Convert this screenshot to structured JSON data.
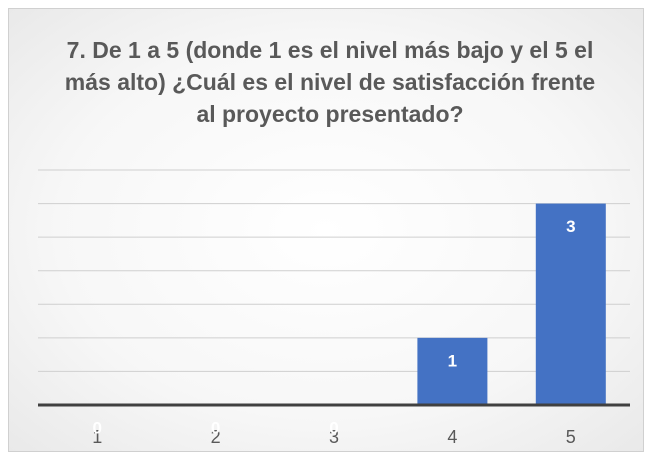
{
  "chart_data": {
    "type": "bar",
    "title": "7. De 1 a 5 (donde 1 es el nivel más bajo y el 5 el más alto) ¿Cuál es el nivel de satisfacción frente al proyecto presentado?",
    "categories": [
      "1",
      "2",
      "3",
      "4",
      "5"
    ],
    "values": [
      0,
      0,
      0,
      1,
      3
    ],
    "color": "#4472c4",
    "ylim": [
      0,
      3.5
    ],
    "yticks": [
      0,
      0.5,
      1,
      1.5,
      2,
      2.5,
      3,
      3.5
    ],
    "grid": true
  }
}
